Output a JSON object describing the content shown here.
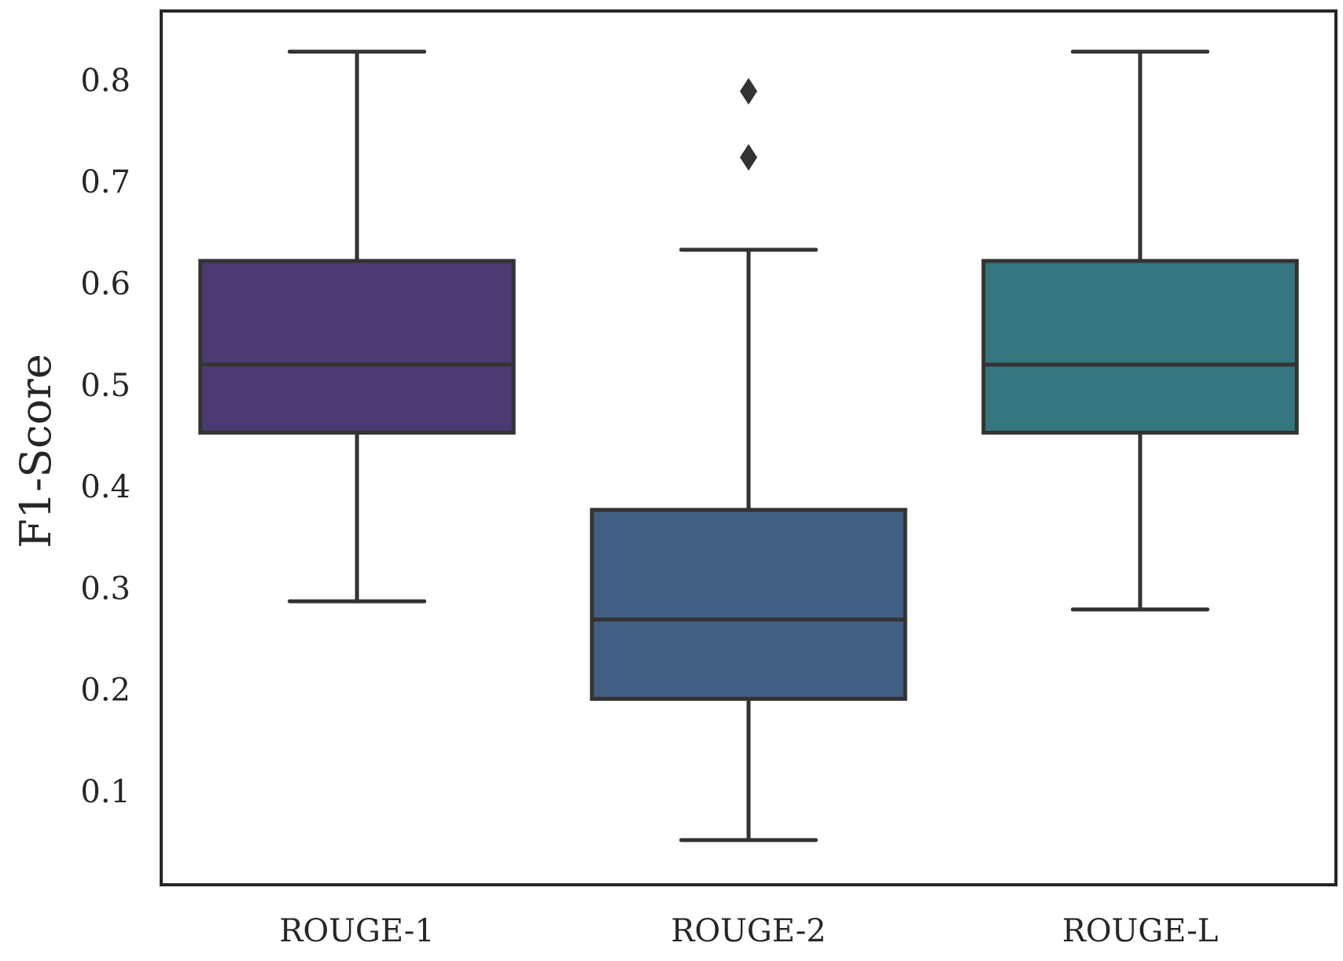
{
  "chart_data": {
    "type": "box",
    "title": "",
    "xlabel": "",
    "ylabel": "F1-Score",
    "ylim": [
      0.008,
      0.868
    ],
    "yticks": [
      0.1,
      0.2,
      0.3,
      0.4,
      0.5,
      0.6,
      0.7,
      0.8
    ],
    "ytick_labels": [
      "0.1",
      "0.2",
      "0.3",
      "0.4",
      "0.5",
      "0.6",
      "0.7",
      "0.8"
    ],
    "grid": false,
    "categories": [
      "ROUGE-1",
      "ROUGE-2",
      "ROUGE-L"
    ],
    "boxes": [
      {
        "category": "ROUGE-1",
        "whisker_low": 0.287,
        "q1": 0.453,
        "median": 0.52,
        "q3": 0.622,
        "whisker_high": 0.828,
        "outliers": [],
        "color": "#4a3b72"
      },
      {
        "category": "ROUGE-2",
        "whisker_low": 0.052,
        "q1": 0.191,
        "median": 0.269,
        "q3": 0.377,
        "whisker_high": 0.633,
        "outliers": [
          0.724,
          0.789
        ],
        "color": "#415f83"
      },
      {
        "category": "ROUGE-L",
        "whisker_low": 0.279,
        "q1": 0.453,
        "median": 0.52,
        "q3": 0.622,
        "whisker_high": 0.828,
        "outliers": [],
        "color": "#35767e"
      }
    ],
    "edge_color": "#333333"
  }
}
